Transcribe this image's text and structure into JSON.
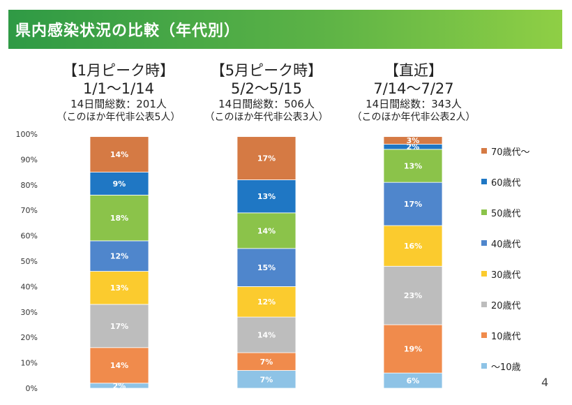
{
  "title": "県内感染状況の比較（年代別）",
  "page_number": "4",
  "periods": [
    {
      "label": "【1月ピーク時】",
      "range": "1/1～1/14",
      "total": "14日間総数：201人",
      "note": "（このほか年代非公表5人）"
    },
    {
      "label": "【5月ピーク時】",
      "range": "5/2～5/15",
      "total": "14日間総数：506人",
      "note": "（このほか年代非公表3人）"
    },
    {
      "label": "【直近】",
      "range": "7/14～7/27",
      "total": "14日間総数：343人",
      "note": "（このほか年代非公表2人）"
    }
  ],
  "chart_data": {
    "type": "bar",
    "stacked": true,
    "percent": true,
    "categories": [
      "1月ピーク時",
      "5月ピーク時",
      "直近"
    ],
    "y_ticks": [
      "0%",
      "10%",
      "20%",
      "30%",
      "40%",
      "50%",
      "60%",
      "70%",
      "80%",
      "90%",
      "100%"
    ],
    "ylim": [
      0,
      100
    ],
    "legend_position": "right",
    "series": [
      {
        "name": "～10歳",
        "color": "#8ec3e6",
        "values": [
          2,
          7,
          6
        ],
        "labels": [
          "2%",
          "7%",
          "6%"
        ]
      },
      {
        "name": "10歳代",
        "color": "#f08b4c",
        "values": [
          14,
          7,
          19
        ],
        "labels": [
          "14%",
          "7%",
          "19%"
        ]
      },
      {
        "name": "20歳代",
        "color": "#bdbdbd",
        "values": [
          17,
          14,
          23
        ],
        "labels": [
          "17%",
          "14%",
          "23%"
        ]
      },
      {
        "name": "30歳代",
        "color": "#fbcb2e",
        "values": [
          13,
          12,
          16
        ],
        "labels": [
          "13%",
          "12%",
          "16%"
        ]
      },
      {
        "name": "40歳代",
        "color": "#4f86cc",
        "values": [
          12,
          15,
          17
        ],
        "labels": [
          "12%",
          "15%",
          "17%"
        ]
      },
      {
        "name": "50歳代",
        "color": "#8bc34a",
        "values": [
          18,
          14,
          13
        ],
        "labels": [
          "18%",
          "14%",
          "13%"
        ]
      },
      {
        "name": "60歳代",
        "color": "#1f77c4",
        "values": [
          9,
          13,
          2
        ],
        "labels": [
          "9%",
          "13%",
          "2%"
        ]
      },
      {
        "name": "70歳代～",
        "color": "#d57a44",
        "values": [
          14,
          17,
          3
        ],
        "labels": [
          "14%",
          "17%",
          "3%"
        ]
      }
    ]
  }
}
